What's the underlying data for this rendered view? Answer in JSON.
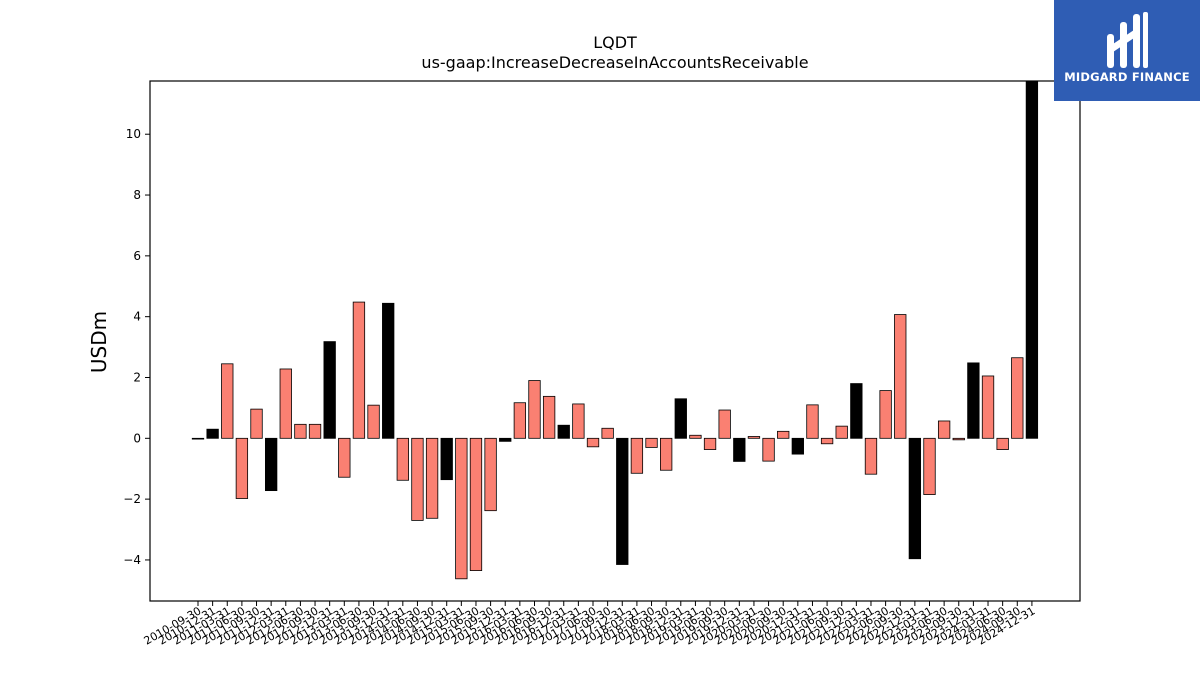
{
  "chart_data": {
    "type": "bar",
    "title": "LQDT",
    "subtitle": "us-gaap:IncreaseDecreaseInAccountsReceivable",
    "ylabel": "USDm",
    "xlabel": "",
    "ylim": [
      -5.35,
      11.75
    ],
    "yticks": [
      -4,
      -2,
      0,
      2,
      4,
      6,
      8,
      10
    ],
    "categories": [
      "2010-09-30",
      "2010-12-31",
      "2011-03-31",
      "2011-06-30",
      "2011-09-30",
      "2011-12-31",
      "2012-03-31",
      "2012-06-30",
      "2012-09-30",
      "2012-12-31",
      "2013-03-31",
      "2013-06-30",
      "2013-09-30",
      "2013-12-31",
      "2014-03-31",
      "2014-06-30",
      "2014-09-30",
      "2014-12-31",
      "2015-03-31",
      "2015-06-30",
      "2015-09-30",
      "2015-12-31",
      "2016-03-31",
      "2016-06-30",
      "2016-09-30",
      "2016-12-31",
      "2017-03-31",
      "2017-06-30",
      "2017-09-30",
      "2017-12-31",
      "2018-03-31",
      "2018-06-30",
      "2018-09-30",
      "2018-12-31",
      "2019-03-31",
      "2019-06-30",
      "2019-09-30",
      "2019-12-31",
      "2020-03-31",
      "2020-06-30",
      "2020-09-30",
      "2020-12-31",
      "2021-03-31",
      "2021-06-30",
      "2021-09-30",
      "2021-12-31",
      "2022-03-31",
      "2022-06-30",
      "2022-09-30",
      "2022-12-31",
      "2023-03-31",
      "2023-06-30",
      "2023-09-30",
      "2023-12-31",
      "2024-03-31",
      "2024-06-30",
      "2024-09-30",
      "2024-12-31"
    ],
    "values": [
      0.0,
      0.3,
      2.45,
      -1.98,
      0.96,
      -1.72,
      2.28,
      0.46,
      0.46,
      3.18,
      -1.28,
      4.48,
      1.09,
      4.44,
      -1.38,
      -2.7,
      -2.63,
      -1.36,
      -4.62,
      -4.35,
      -2.38,
      -0.1,
      1.17,
      1.9,
      1.38,
      0.43,
      1.13,
      -0.28,
      0.33,
      -4.15,
      -1.15,
      -0.3,
      -1.05,
      1.3,
      0.1,
      -0.37,
      0.93,
      -0.76,
      0.06,
      -0.75,
      0.23,
      -0.52,
      1.1,
      -0.18,
      0.4,
      1.8,
      -1.18,
      1.57,
      4.07,
      -3.96,
      -1.85,
      0.57,
      -0.05,
      2.48,
      2.05,
      -0.37,
      2.65,
      11.75
    ],
    "highlight": [
      false,
      true,
      false,
      false,
      false,
      true,
      false,
      false,
      false,
      true,
      false,
      false,
      false,
      true,
      false,
      false,
      false,
      true,
      false,
      false,
      false,
      true,
      false,
      false,
      false,
      true,
      false,
      false,
      false,
      true,
      false,
      false,
      false,
      true,
      false,
      false,
      false,
      true,
      false,
      false,
      false,
      true,
      false,
      false,
      false,
      true,
      false,
      false,
      false,
      true,
      false,
      false,
      false,
      true,
      false,
      false,
      false,
      true
    ],
    "colors": {
      "normal": "#fa8072",
      "highlight": "#000000",
      "edge": "#000000"
    },
    "grid": false
  },
  "logo": {
    "brand": "MIDGARD FINANCE"
  }
}
